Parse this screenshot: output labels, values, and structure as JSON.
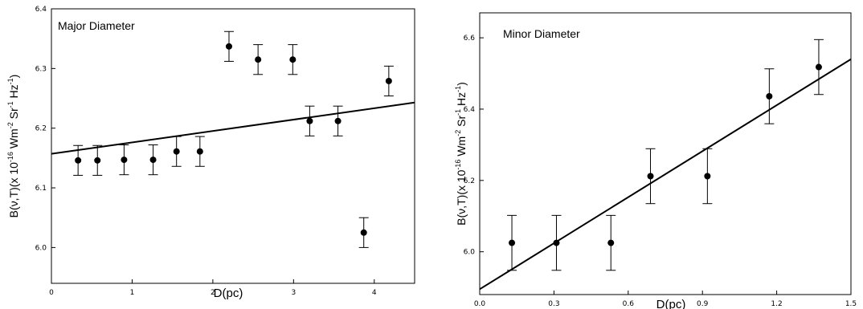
{
  "chart_data": [
    {
      "type": "scatter",
      "title": "Major Diameter",
      "xlabel": "D(pc)",
      "ylabel": "B(ν,T)(x 10^-16 Wm^-2 Sr^-1 Hz^-1)",
      "ylabel_parts": [
        "B(ν,T)(x 10",
        "-16",
        " Wm",
        "-2",
        " Sr",
        "-1",
        " Hz",
        "-1",
        ")"
      ],
      "xlim": [
        0,
        4.5
      ],
      "ylim": [
        5.94,
        6.4
      ],
      "xticks": [
        0,
        1,
        2,
        3,
        4
      ],
      "yticks": [
        6.0,
        6.1,
        6.2,
        6.3,
        6.4
      ],
      "xtick_labels": [
        "0",
        "1",
        "2",
        "3",
        "4"
      ],
      "ytick_labels": [
        "6.0",
        "6.1",
        "6.2",
        "6.3",
        "6.4"
      ],
      "series": [
        {
          "x": [
            0.33,
            0.57,
            0.9,
            1.26,
            1.55,
            1.84,
            2.2,
            2.56,
            2.99,
            3.2,
            3.55,
            3.87,
            4.18
          ],
          "y": [
            6.146,
            6.146,
            6.147,
            6.147,
            6.161,
            6.161,
            6.337,
            6.315,
            6.315,
            6.212,
            6.212,
            6.025,
            6.279
          ],
          "err": [
            0.025,
            0.025,
            0.025,
            0.025,
            0.025,
            0.025,
            0.025,
            0.025,
            0.025,
            0.025,
            0.025,
            0.025,
            0.025
          ]
        }
      ],
      "fit_line": {
        "x": [
          0,
          4.5
        ],
        "y": [
          6.157,
          6.243
        ]
      }
    },
    {
      "type": "scatter",
      "title": "Minor Diameter",
      "xlabel": "D(pc)",
      "ylabel": "B(ν,T)(x 10^-16 Wm^-2 Sr^-1 Hz^-1)",
      "ylabel_parts": [
        "B(ν,T)(x 10",
        "-16",
        " Wm",
        "-2",
        " Sr",
        "-1",
        " Hz",
        "-1",
        ")"
      ],
      "xlim": [
        0,
        1.5
      ],
      "ylim": [
        5.88,
        6.67
      ],
      "xticks": [
        0,
        0.3,
        0.6,
        0.9,
        1.2,
        1.5
      ],
      "yticks": [
        6.0,
        6.2,
        6.4,
        6.6
      ],
      "xtick_labels": [
        "0.0",
        "0.3",
        "0.6",
        "0.9",
        "1.2",
        "1.5"
      ],
      "ytick_labels": [
        "6.0",
        "6.2",
        "6.4",
        "6.6"
      ],
      "series": [
        {
          "x": [
            0.13,
            0.31,
            0.53,
            0.69,
            0.92,
            1.17,
            1.37
          ],
          "y": [
            6.025,
            6.025,
            6.025,
            6.212,
            6.212,
            6.436,
            6.518
          ],
          "err": [
            0.077,
            0.077,
            0.077,
            0.077,
            0.077,
            0.077,
            0.077
          ]
        }
      ],
      "fit_line": {
        "x": [
          0,
          1.5
        ],
        "y": [
          5.895,
          6.54
        ]
      }
    }
  ]
}
